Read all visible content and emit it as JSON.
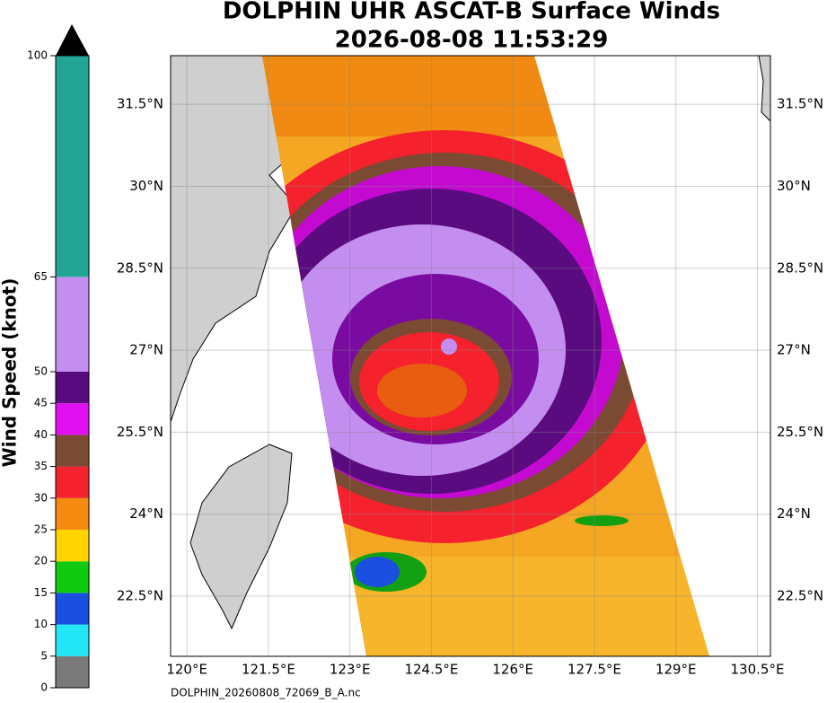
{
  "title": [
    "DOLPHIN UHR ASCAT-B Surface Winds",
    "2026-08-08 11:53:29"
  ],
  "colorbar": {
    "label": "Wind Speed (knot)",
    "lim": [
      0,
      100
    ],
    "ticks": [
      0,
      5,
      10,
      15,
      20,
      25,
      30,
      35,
      40,
      45,
      50,
      65,
      100
    ],
    "colors": [
      "#7a7a7a",
      "#22e6f5",
      "#1a4fe0",
      "#12c912",
      "#ffd400",
      "#f58a10",
      "#f5222d",
      "#7a4a33",
      "#e00ff0",
      "#5a0b80",
      "#c48ef0",
      "#23a596"
    ]
  },
  "latlim": [
    21.4,
    32.39
  ],
  "lonlim": [
    119.7,
    130.74
  ],
  "lat_ticks": [
    {
      "value": 31.5,
      "label": "31.5°N"
    },
    {
      "value": 30,
      "label": "30°N"
    },
    {
      "value": 28.5,
      "label": "28.5°N"
    },
    {
      "value": 27,
      "label": "27°N"
    },
    {
      "value": 25.5,
      "label": "25.5°N"
    },
    {
      "value": 24,
      "label": "24°N"
    },
    {
      "value": 22.5,
      "label": "22.5°N"
    }
  ],
  "lon_ticks": [
    {
      "value": 120,
      "label": "120°E"
    },
    {
      "value": 121.5,
      "label": "121.5°E"
    },
    {
      "value": 123,
      "label": "123°E"
    },
    {
      "value": 124.5,
      "label": "124.5°E"
    },
    {
      "value": 126,
      "label": "126°E"
    },
    {
      "value": 127.5,
      "label": "127.5°E"
    },
    {
      "value": 129,
      "label": "129°E"
    },
    {
      "value": 130.5,
      "label": "130.5°E"
    }
  ],
  "footer": "DOLPHIN_20260808_72069_B_A.nc"
}
